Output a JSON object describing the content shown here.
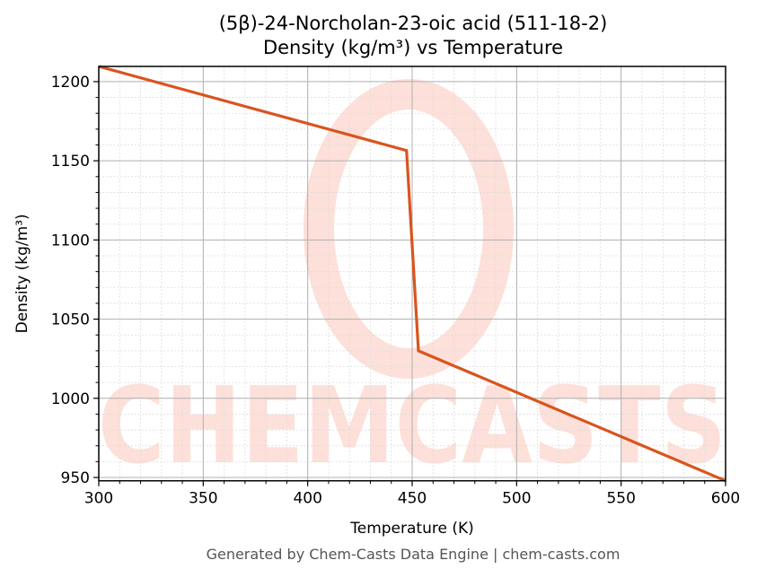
{
  "chart_data": {
    "type": "line",
    "title": "(5β)-24-Norcholan-23-oic acid (511-18-2)",
    "subtitle": "Density (kg/m³) vs Temperature",
    "xlabel": "Temperature (K)",
    "ylabel": "Density (kg/m³)",
    "xlim": [
      300,
      600
    ],
    "ylim": [
      947.9,
      1209.6
    ],
    "xticks": [
      300,
      350,
      400,
      450,
      500,
      550,
      600
    ],
    "yticks": [
      950,
      1000,
      1050,
      1100,
      1150,
      1200
    ],
    "grid": true,
    "minor_grid": true,
    "legend": null,
    "series": [
      {
        "name": "Density",
        "color": "#D9541E",
        "x": [
          300,
          447.3,
          453,
          600
        ],
        "y": [
          1209.6,
          1156.5,
          1030,
          947.9
        ]
      }
    ]
  },
  "footer": "Generated by Chem-Casts Data Engine | chem-casts.com",
  "watermark": "CHEMCASTS",
  "colors": {
    "line": "#D9541E",
    "watermark": "#FDE0D9",
    "major_grid": "#b0b0b0",
    "minor_grid": "#dddddd",
    "footer_text": "#555555"
  }
}
